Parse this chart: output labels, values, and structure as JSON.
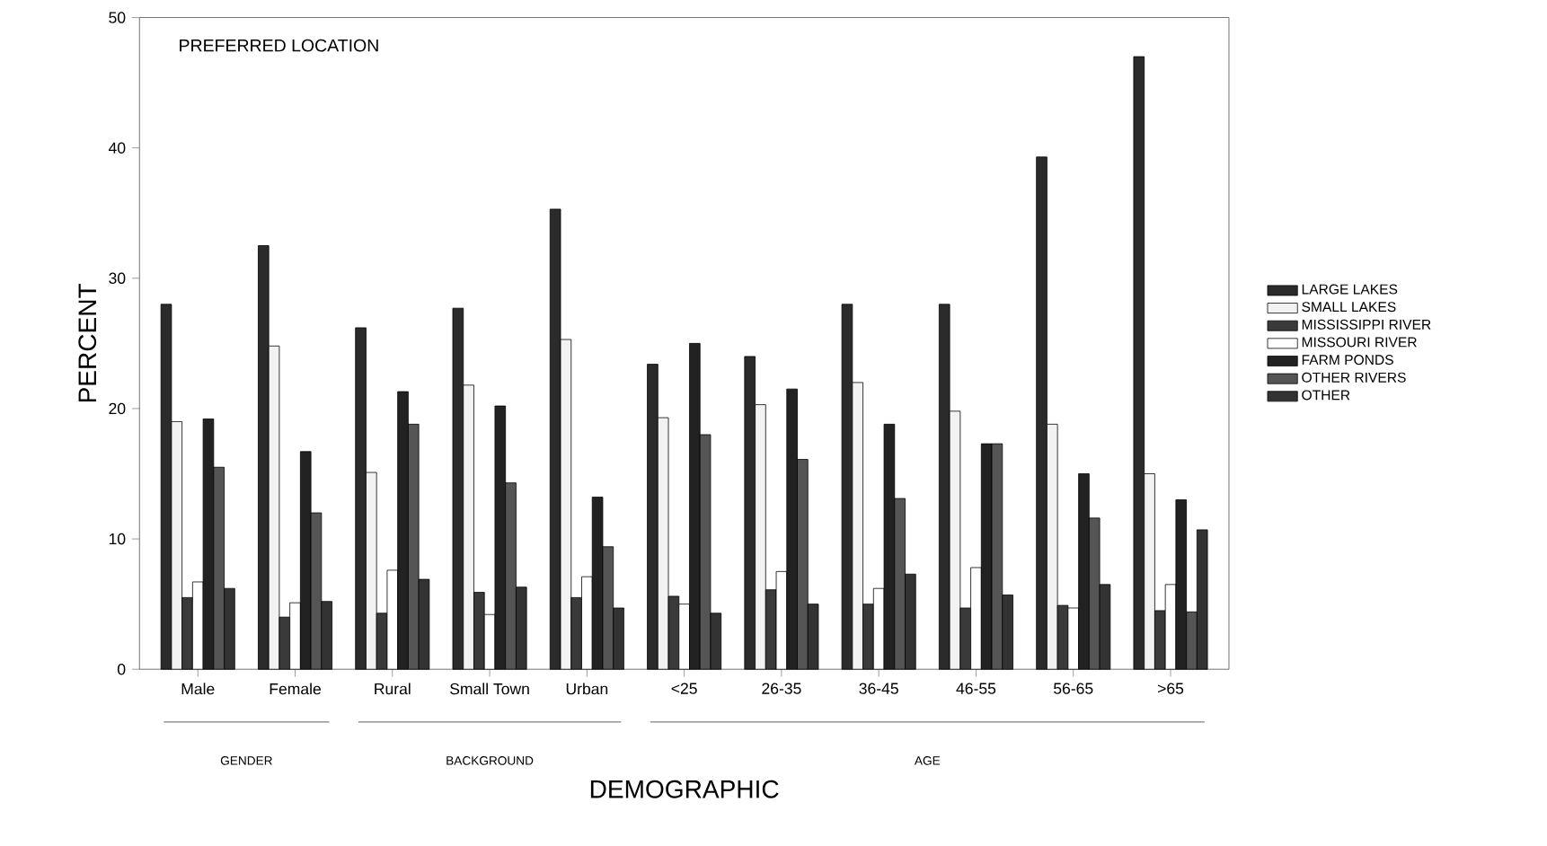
{
  "chart_data": {
    "type": "bar",
    "title": "PREFERRED LOCATION",
    "xlabel": "DEMOGRAPHIC",
    "ylabel": "PERCENT",
    "categories": [
      "Male",
      "Female",
      "Rural",
      "Small Town",
      "Urban",
      "<25",
      "26-35",
      "36-45",
      "46-55",
      "56-65",
      ">65"
    ],
    "series": [
      {
        "name": "LARGE LAKES",
        "color": "#2b2b2b",
        "values": [
          28,
          32.5,
          26.2,
          27.7,
          35.3,
          23.4,
          24,
          28,
          28,
          39.3,
          47
        ]
      },
      {
        "name": "SMALL LAKES",
        "color": "#f2f2f2",
        "values": [
          19,
          24.8,
          15.1,
          21.8,
          25.3,
          19.3,
          20.3,
          22,
          19.8,
          18.8,
          15
        ]
      },
      {
        "name": "MISSISSIPPI RIVER",
        "color": "#3a3a3a",
        "values": [
          5.5,
          4,
          4.3,
          5.9,
          5.5,
          5.6,
          6.1,
          5,
          4.7,
          4.9,
          4.5
        ]
      },
      {
        "name": "MISSOURI RIVER",
        "color": "#ffffff",
        "values": [
          6.7,
          5.1,
          7.6,
          4.2,
          7.1,
          5,
          7.5,
          6.2,
          7.8,
          4.7,
          6.5
        ]
      },
      {
        "name": "FARM PONDS",
        "color": "#222222",
        "values": [
          19.2,
          16.7,
          21.3,
          20.2,
          13.2,
          25,
          21.5,
          18.8,
          17.3,
          15,
          13
        ]
      },
      {
        "name": "OTHER RIVERS",
        "color": "#555555",
        "values": [
          15.5,
          12,
          18.8,
          14.3,
          9.4,
          18,
          16.1,
          13.1,
          17.3,
          11.6,
          4.4
        ]
      },
      {
        "name": "OTHER",
        "color": "#333333",
        "values": [
          6.2,
          5.2,
          6.9,
          6.3,
          4.7,
          4.3,
          5,
          7.3,
          5.7,
          6.5,
          10.7
        ]
      }
    ],
    "ylim": [
      0,
      50
    ],
    "yticks": [
      0,
      10,
      20,
      30,
      40,
      50
    ],
    "legend": "right",
    "annotations": [
      "GENDER",
      "BACKGROUND",
      "AGE"
    ]
  }
}
